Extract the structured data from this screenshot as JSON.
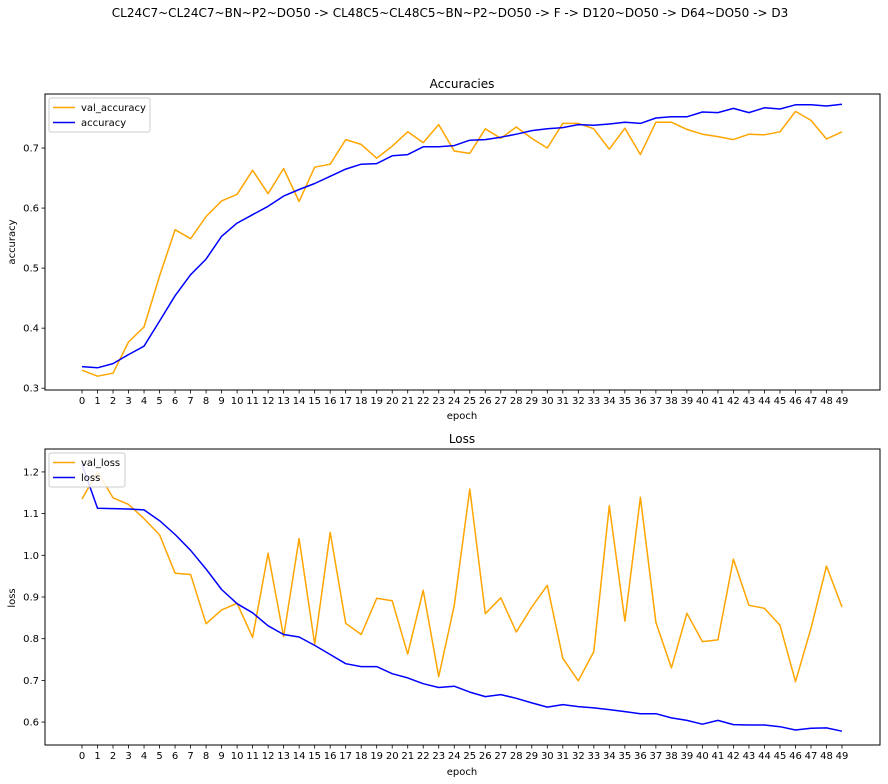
{
  "figure_title": "CL24C7~CL24C7~BN~P2~DO50 -> CL48C5~CL48C5~BN~P2~DO50 -> F -> D120~DO50 -> D64~DO50 -> D3",
  "colors": {
    "val": "#FFA500",
    "train": "#0000FF"
  },
  "chart_data": [
    {
      "type": "line",
      "title": "Accuracies",
      "xlabel": "epoch",
      "ylabel": "accuracy",
      "x": [
        0,
        1,
        2,
        3,
        4,
        5,
        6,
        7,
        8,
        9,
        10,
        11,
        12,
        13,
        14,
        15,
        16,
        17,
        18,
        19,
        20,
        21,
        22,
        23,
        24,
        25,
        26,
        27,
        28,
        29,
        30,
        31,
        32,
        33,
        34,
        35,
        36,
        37,
        38,
        39,
        40,
        41,
        42,
        43,
        44,
        45,
        46,
        47,
        48,
        49
      ],
      "ylim": [
        0.297,
        0.79
      ],
      "yticks": [
        0.3,
        0.4,
        0.5,
        0.6,
        0.7
      ],
      "legend_position": "top-left",
      "series": [
        {
          "name": "val_accuracy",
          "color": "#FFA500",
          "values": [
            0.33,
            0.32,
            0.325,
            0.377,
            0.402,
            0.487,
            0.564,
            0.549,
            0.586,
            0.612,
            0.623,
            0.663,
            0.624,
            0.666,
            0.611,
            0.668,
            0.673,
            0.714,
            0.706,
            0.683,
            0.703,
            0.727,
            0.709,
            0.739,
            0.695,
            0.691,
            0.732,
            0.716,
            0.735,
            0.716,
            0.7,
            0.741,
            0.741,
            0.732,
            0.698,
            0.733,
            0.689,
            0.743,
            0.743,
            0.731,
            0.723,
            0.719,
            0.714,
            0.723,
            0.722,
            0.727,
            0.761,
            0.746,
            0.715,
            0.727
          ]
        },
        {
          "name": "accuracy",
          "color": "#0000FF",
          "values": [
            0.336,
            0.334,
            0.341,
            0.356,
            0.37,
            0.412,
            0.454,
            0.489,
            0.515,
            0.553,
            0.575,
            0.589,
            0.603,
            0.62,
            0.631,
            0.641,
            0.653,
            0.665,
            0.673,
            0.674,
            0.687,
            0.689,
            0.702,
            0.702,
            0.704,
            0.713,
            0.714,
            0.718,
            0.723,
            0.729,
            0.732,
            0.734,
            0.739,
            0.738,
            0.74,
            0.743,
            0.741,
            0.75,
            0.752,
            0.752,
            0.76,
            0.759,
            0.766,
            0.759,
            0.767,
            0.765,
            0.772,
            0.772,
            0.77,
            0.773
          ]
        }
      ]
    },
    {
      "type": "line",
      "title": "Loss",
      "xlabel": "epoch",
      "ylabel": "loss",
      "x": [
        0,
        1,
        2,
        3,
        4,
        5,
        6,
        7,
        8,
        9,
        10,
        11,
        12,
        13,
        14,
        15,
        16,
        17,
        18,
        19,
        20,
        21,
        22,
        23,
        24,
        25,
        26,
        27,
        28,
        29,
        30,
        31,
        32,
        33,
        34,
        35,
        36,
        37,
        38,
        39,
        40,
        41,
        42,
        43,
        44,
        45,
        46,
        47,
        48,
        49
      ],
      "ylim": [
        0.545,
        1.255
      ],
      "yticks": [
        0.6,
        0.7,
        0.8,
        0.9,
        1.0,
        1.1,
        1.2
      ],
      "legend_position": "top-left",
      "series": [
        {
          "name": "val_loss",
          "color": "#FFA500",
          "values": [
            1.135,
            1.2,
            1.138,
            1.122,
            1.088,
            1.049,
            0.957,
            0.954,
            0.836,
            0.869,
            0.885,
            0.803,
            1.005,
            0.805,
            1.04,
            0.787,
            1.055,
            0.837,
            0.81,
            0.897,
            0.891,
            0.763,
            0.916,
            0.709,
            0.879,
            1.159,
            0.86,
            0.898,
            0.816,
            0.876,
            0.928,
            0.753,
            0.699,
            0.769,
            1.119,
            0.842,
            1.139,
            0.839,
            0.73,
            0.861,
            0.793,
            0.797,
            0.991,
            0.88,
            0.873,
            0.832,
            0.697,
            0.825,
            0.974,
            0.876
          ]
        },
        {
          "name": "loss",
          "color": "#0000FF",
          "values": [
            1.218,
            1.113,
            1.112,
            1.111,
            1.109,
            1.083,
            1.05,
            1.012,
            0.967,
            0.918,
            0.884,
            0.862,
            0.831,
            0.81,
            0.804,
            0.784,
            0.762,
            0.74,
            0.733,
            0.733,
            0.716,
            0.706,
            0.692,
            0.683,
            0.686,
            0.672,
            0.661,
            0.666,
            0.657,
            0.646,
            0.636,
            0.642,
            0.637,
            0.634,
            0.63,
            0.625,
            0.62,
            0.62,
            0.61,
            0.604,
            0.595,
            0.604,
            0.594,
            0.593,
            0.593,
            0.589,
            0.581,
            0.585,
            0.586,
            0.578
          ]
        }
      ]
    }
  ]
}
